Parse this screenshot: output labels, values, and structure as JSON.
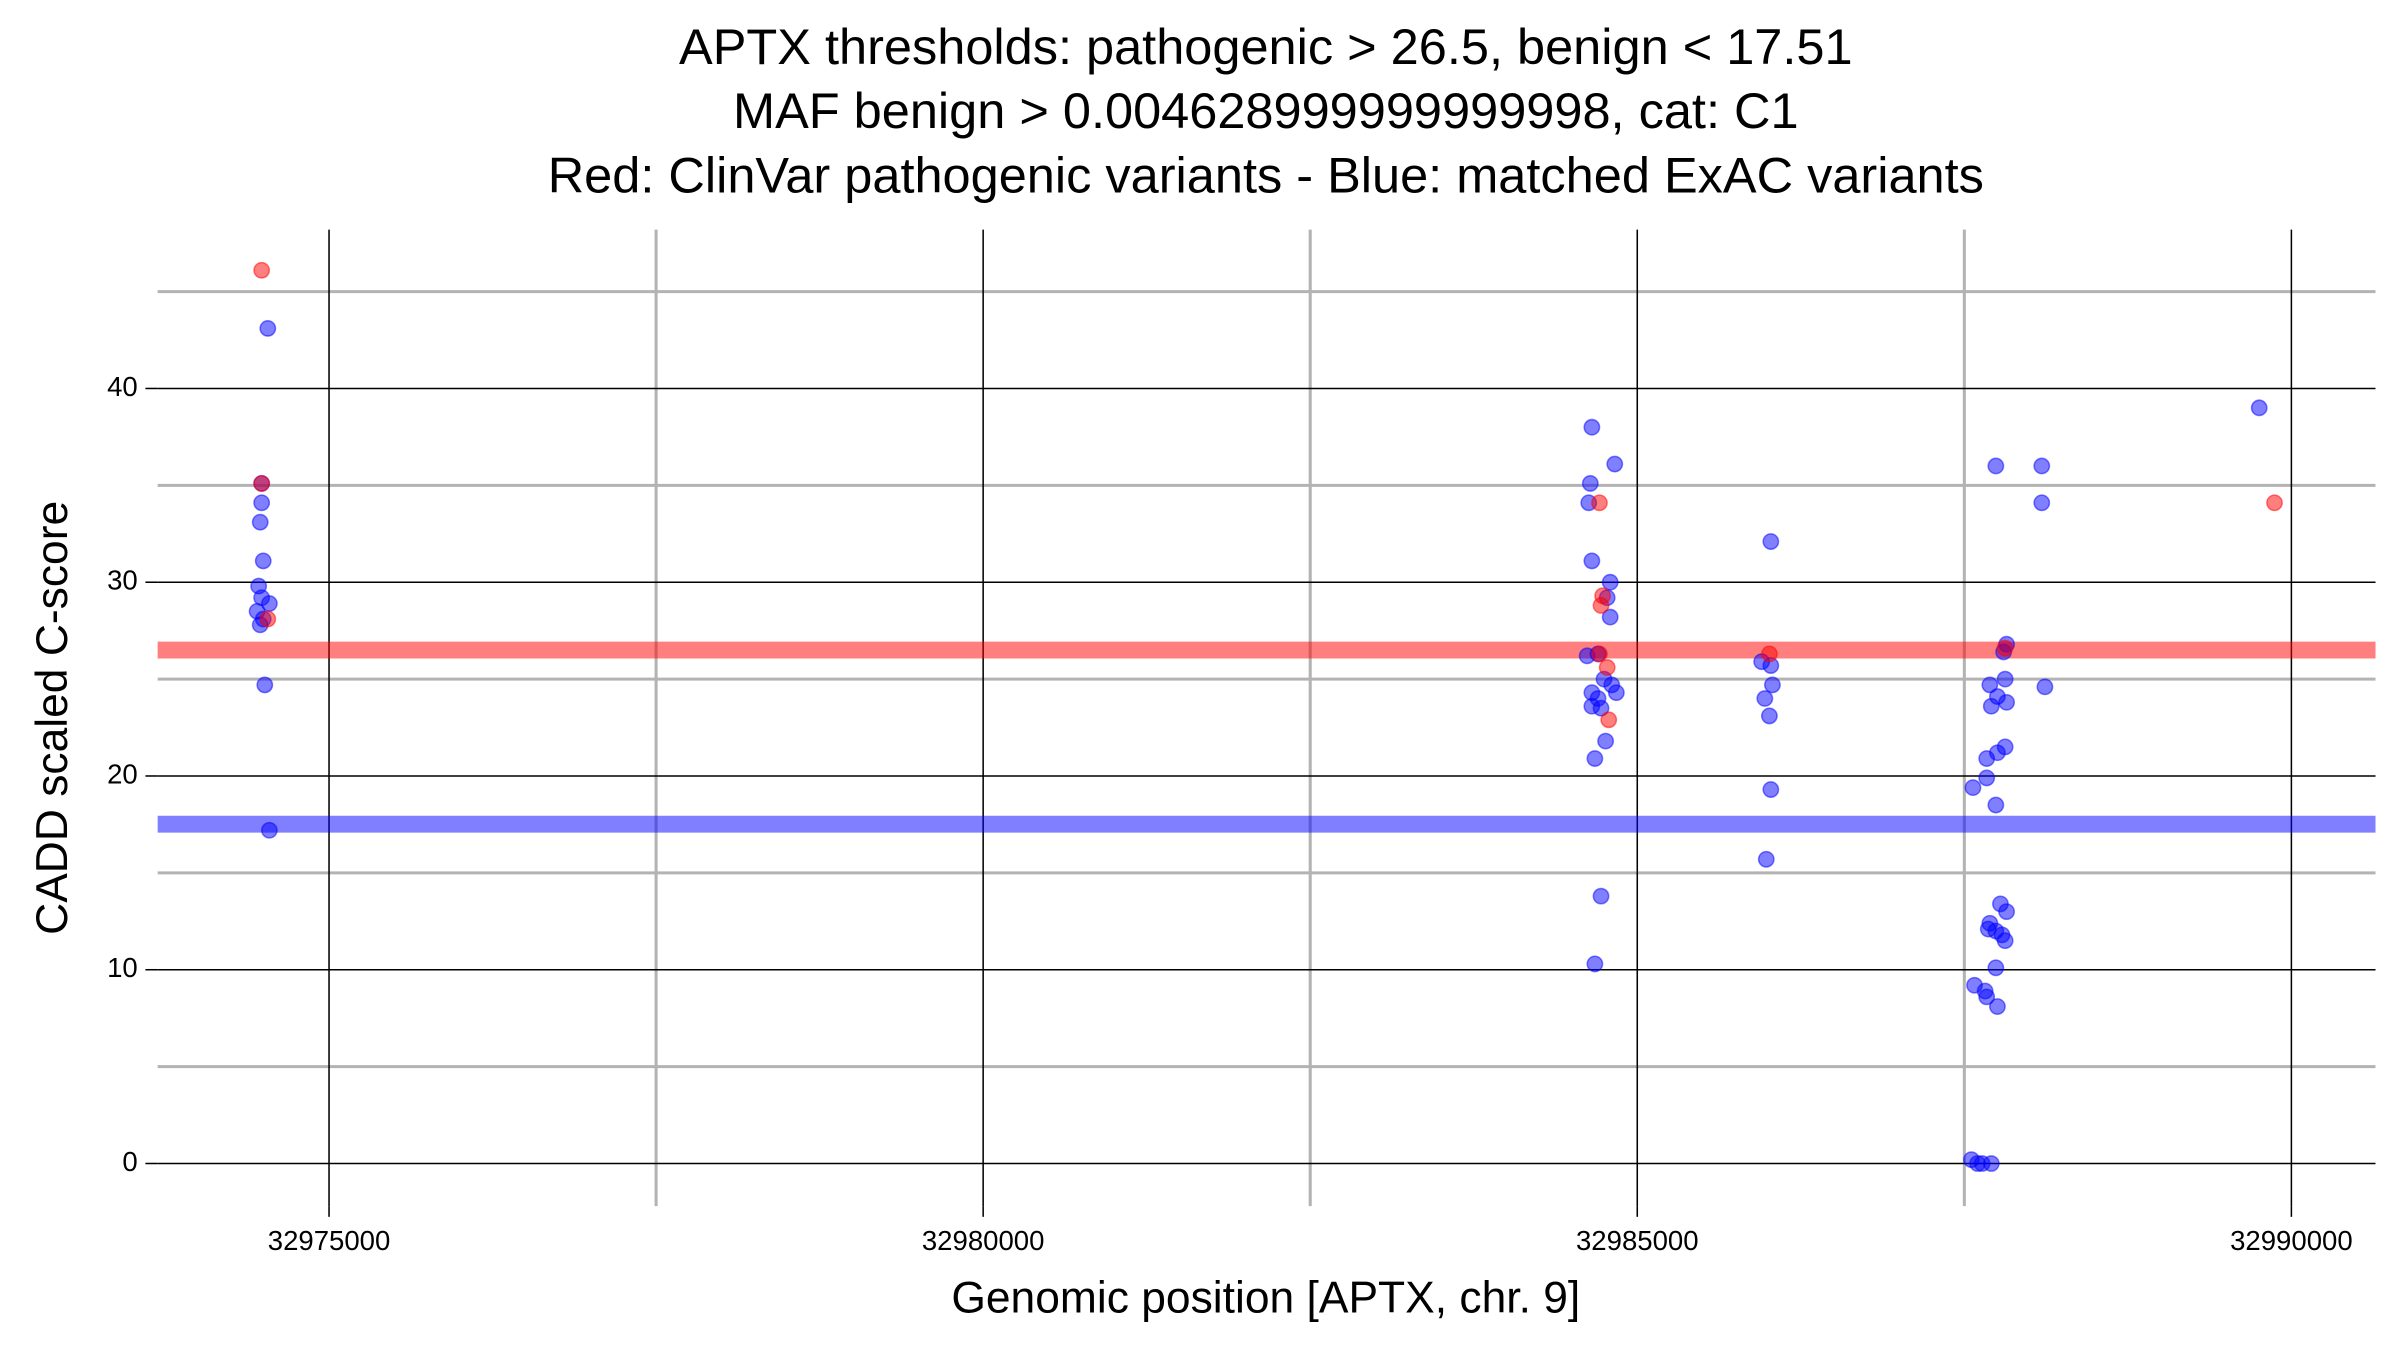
{
  "chart_data": {
    "type": "scatter",
    "title": [
      "APTX thresholds: pathogenic > 26.5, benign < 17.51",
      "MAF benign > 0.004628999999999998, cat: C1",
      "Red: ClinVar pathogenic variants - Blue: matched ExAC variants"
    ],
    "x_label": "Genomic position [APTX, chr. 9]",
    "y_label": "CADD scaled C-score",
    "xlim": [
      32973690,
      32990643
    ],
    "ylim": [
      -2.2,
      48.2
    ],
    "xticks": [
      32975000,
      32980000,
      32985000,
      32990000
    ],
    "yticks": [
      0,
      10,
      20,
      30,
      40
    ],
    "xminor": [
      32977500,
      32982500,
      32987500
    ],
    "yminor": [
      5,
      15,
      25,
      35,
      45
    ],
    "grid": true,
    "hlines": [
      {
        "value": 26.5,
        "color": "#ff0000"
      },
      {
        "value": 17.51,
        "color": "#0000ff"
      }
    ],
    "series": [
      {
        "color": "#0000ff",
        "x": [
          32974532,
          32974485,
          32974485,
          32974474,
          32974497,
          32974462,
          32974485,
          32974544,
          32974450,
          32974497,
          32974474,
          32974509,
          32974544,
          32984653,
          32984641,
          32984629,
          32984828,
          32984653,
          32984793,
          32984770,
          32984793,
          32984617,
          32984700,
          32984746,
          32984805,
          32984653,
          32984840,
          32984700,
          32984653,
          32984723,
          32984758,
          32984676,
          32984723,
          32984676,
          32986021,
          32985951,
          32986021,
          32986033,
          32985975,
          32986010,
          32986021,
          32985986,
          32987741,
          32988092,
          32988092,
          32987823,
          32987800,
          32987695,
          32987812,
          32988116,
          32987753,
          32987823,
          32987706,
          32987812,
          32987753,
          32987671,
          32987671,
          32987566,
          32987741,
          32987776,
          32987823,
          32987695,
          32987683,
          32987741,
          32987788,
          32987812,
          32987741,
          32987578,
          32987659,
          32987671,
          32987753,
          32987554,
          32987601,
          32987636,
          32987706,
          32989754
        ],
        "values": [
          43.1,
          35.1,
          34.1,
          33.1,
          31.1,
          29.8,
          29.2,
          28.9,
          28.5,
          28.1,
          27.8,
          24.7,
          17.2,
          38.0,
          35.1,
          34.1,
          36.1,
          31.1,
          30.0,
          29.2,
          28.2,
          26.2,
          26.3,
          25.0,
          24.7,
          24.3,
          24.3,
          24.0,
          23.6,
          23.5,
          21.8,
          20.9,
          13.8,
          10.3,
          32.1,
          25.9,
          25.7,
          24.7,
          24.0,
          23.1,
          19.3,
          15.7,
          36.0,
          36.0,
          34.1,
          26.8,
          26.4,
          24.7,
          25.0,
          24.6,
          24.1,
          23.8,
          23.6,
          21.5,
          21.2,
          20.9,
          19.9,
          19.4,
          18.5,
          13.4,
          13.0,
          12.4,
          12.1,
          12.0,
          11.8,
          11.5,
          10.1,
          9.2,
          8.9,
          8.6,
          8.1,
          0.2,
          0,
          0,
          0,
          39.0
        ]
      },
      {
        "color": "#ff0000",
        "x": [
          32974485,
          32974485,
          32974532,
          32984711,
          32984735,
          32984723,
          32984711,
          32984770,
          32984782,
          32987811,
          32986010,
          32989871
        ],
        "values": [
          46.1,
          35.1,
          28.1,
          34.1,
          29.3,
          28.8,
          26.3,
          25.6,
          22.9,
          26.6,
          26.3,
          34.1
        ]
      }
    ]
  }
}
